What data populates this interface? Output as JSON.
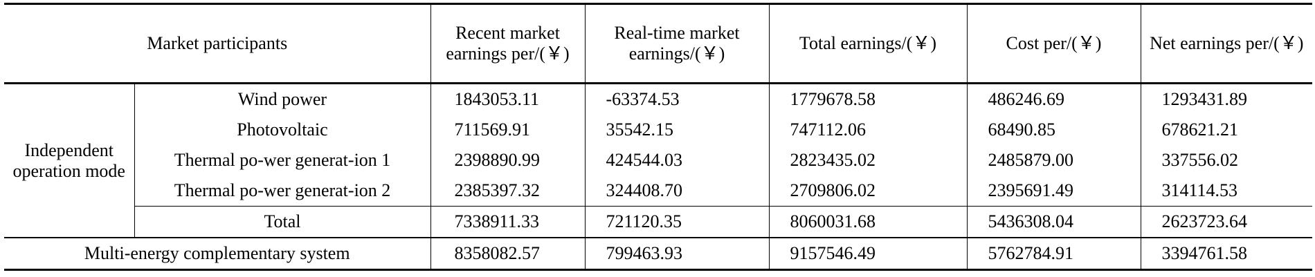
{
  "table": {
    "header": [
      "Market participants",
      "Recent market earnings per/(￥)",
      "Real-time market earnings/(￥)",
      "Total earnings/(￥)",
      "Cost per/(￥)",
      "Net earnings per/(￥)"
    ],
    "group": "Independent operation mode",
    "rows": [
      {
        "label": "Wind power",
        "values": [
          "1843053.11",
          "-63374.53",
          "1779678.58",
          "486246.69",
          "1293431.89"
        ]
      },
      {
        "label": "Photovoltaic",
        "values": [
          "711569.91",
          "35542.15",
          "747112.06",
          "68490.85",
          "678621.21"
        ]
      },
      {
        "label": "Thermal po-wer generat-ion 1",
        "values": [
          "2398890.99",
          "424544.03",
          "2823435.02",
          "2485879.00",
          "337556.02"
        ]
      },
      {
        "label": "Thermal po-wer generat-ion 2",
        "values": [
          "2385397.32",
          "324408.70",
          "2709806.02",
          "2395691.49",
          "314114.53"
        ]
      }
    ],
    "total": {
      "label": "Total",
      "values": [
        "7338911.33",
        "721120.35",
        "8060031.68",
        "5436308.04",
        "2623723.64"
      ]
    },
    "system": {
      "label": "Multi-energy complementary system",
      "values": [
        "8358082.57",
        "799463.93",
        "9157546.49",
        "5762784.91",
        "3394761.58"
      ]
    }
  }
}
